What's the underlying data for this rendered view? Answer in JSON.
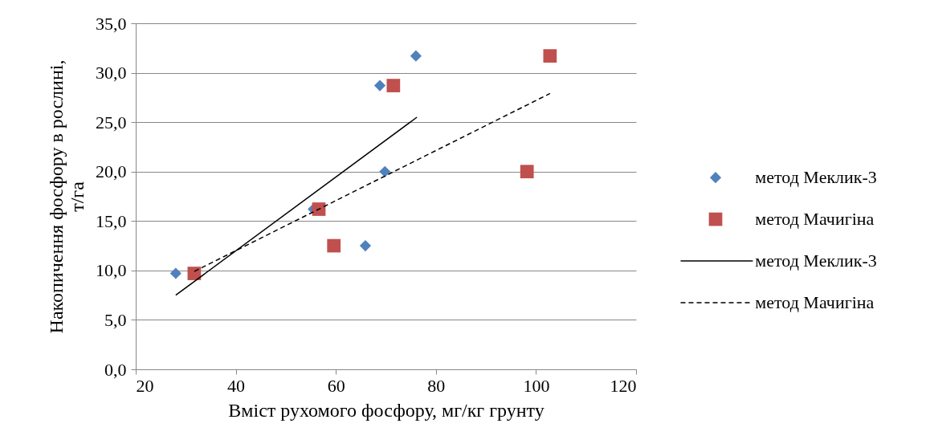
{
  "chart_data": {
    "type": "scatter",
    "xlabel": "Вміст рухомого фосфору, мг/кг грунту",
    "ylabel": "Накопичення фосфору в рослині, т/га",
    "xlim": [
      20,
      120
    ],
    "xticks": [
      20,
      40,
      60,
      80,
      100,
      120
    ],
    "ylim": [
      0,
      35
    ],
    "yticks": [
      {
        "value": 0,
        "label": "0,0"
      },
      {
        "value": 5,
        "label": "5,0"
      },
      {
        "value": 10,
        "label": "10,0"
      },
      {
        "value": 15,
        "label": "15,0"
      },
      {
        "value": 20,
        "label": "20,0"
      },
      {
        "value": 25,
        "label": "25,0"
      },
      {
        "value": 30,
        "label": "30,0"
      },
      {
        "value": 35,
        "label": "35,0"
      }
    ],
    "grid": "y",
    "legend": "right",
    "series": [
      {
        "name": "метод Меклик-3",
        "type": "scatter",
        "marker": "diamond",
        "color": "#4f81bd",
        "x": [
          28.0,
          55.5,
          68.8,
          69.8,
          65.9,
          76.0
        ],
        "values": [
          9.7,
          16.2,
          28.7,
          20.0,
          12.5,
          31.7
        ]
      },
      {
        "name": "метод Мачигіна",
        "type": "scatter",
        "marker": "square",
        "color": "#c0504d",
        "x": [
          31.7,
          56.6,
          59.6,
          71.5,
          98.2,
          102.8
        ],
        "values": [
          9.7,
          16.2,
          12.5,
          28.7,
          20.0,
          31.7
        ]
      },
      {
        "name": "метод Меклик-3",
        "type": "line",
        "line_style": "solid",
        "color": "#000000",
        "x": [
          28.0,
          76.2
        ],
        "values": [
          7.5,
          25.5
        ]
      },
      {
        "name": "метод Мачигіна",
        "type": "line",
        "line_style": "dashed",
        "color": "#000000",
        "x": [
          31.7,
          102.8
        ],
        "values": [
          9.9,
          27.9
        ]
      }
    ]
  }
}
